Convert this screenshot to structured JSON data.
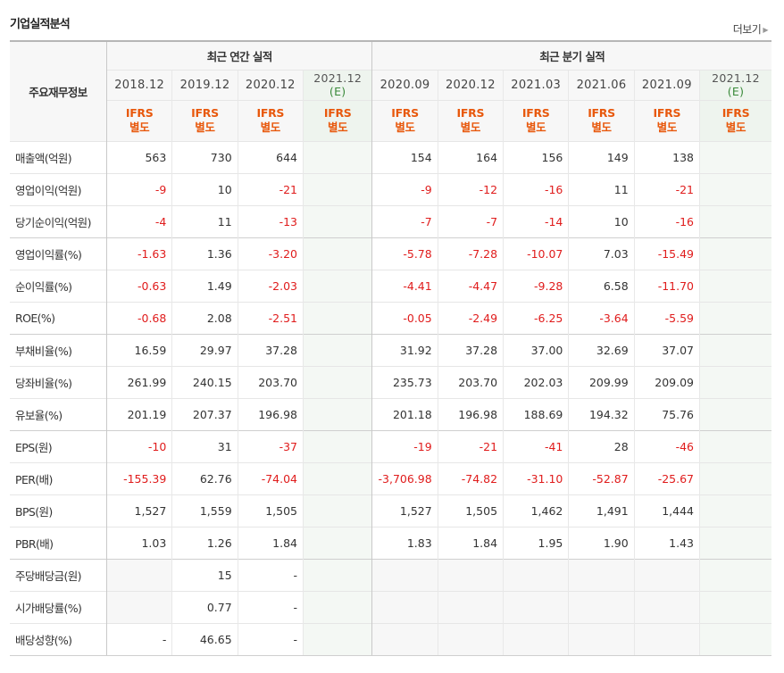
{
  "header": {
    "title": "기업실적분석",
    "more_label": "더보기"
  },
  "table": {
    "corner_label": "주요재무정보",
    "group_annual": "최근 연간 실적",
    "group_quarter": "최근 분기 실적",
    "periods": [
      "2018.12",
      "2019.12",
      "2020.12",
      "2021.12",
      "2020.09",
      "2020.12",
      "2021.03",
      "2021.06",
      "2021.09",
      "2021.12"
    ],
    "estimate_mark": "(E)",
    "ifrs_line1": "IFRS",
    "ifrs_line2": "별도",
    "rows": [
      {
        "label": "매출액(억원)",
        "cells": [
          "563",
          "730",
          "644",
          "",
          "154",
          "164",
          "156",
          "149",
          "138",
          ""
        ]
      },
      {
        "label": "영업이익(억원)",
        "cells": [
          "-9",
          "10",
          "-21",
          "",
          "-9",
          "-12",
          "-16",
          "11",
          "-21",
          ""
        ]
      },
      {
        "label": "당기순이익(억원)",
        "cells": [
          "-4",
          "11",
          "-13",
          "",
          "-7",
          "-7",
          "-14",
          "10",
          "-16",
          ""
        ]
      },
      {
        "label": "영업이익률(%)",
        "cells": [
          "-1.63",
          "1.36",
          "-3.20",
          "",
          "-5.78",
          "-7.28",
          "-10.07",
          "7.03",
          "-15.49",
          ""
        ]
      },
      {
        "label": "순이익률(%)",
        "cells": [
          "-0.63",
          "1.49",
          "-2.03",
          "",
          "-4.41",
          "-4.47",
          "-9.28",
          "6.58",
          "-11.70",
          ""
        ]
      },
      {
        "label": "ROE(%)",
        "cells": [
          "-0.68",
          "2.08",
          "-2.51",
          "",
          "-0.05",
          "-2.49",
          "-6.25",
          "-3.64",
          "-5.59",
          ""
        ]
      },
      {
        "label": "부채비율(%)",
        "cells": [
          "16.59",
          "29.97",
          "37.28",
          "",
          "31.92",
          "37.28",
          "37.00",
          "32.69",
          "37.07",
          ""
        ]
      },
      {
        "label": "당좌비율(%)",
        "cells": [
          "261.99",
          "240.15",
          "203.70",
          "",
          "235.73",
          "203.70",
          "202.03",
          "209.99",
          "209.09",
          ""
        ]
      },
      {
        "label": "유보율(%)",
        "cells": [
          "201.19",
          "207.37",
          "196.98",
          "",
          "201.18",
          "196.98",
          "188.69",
          "194.32",
          "75.76",
          ""
        ]
      },
      {
        "label": "EPS(원)",
        "cells": [
          "-10",
          "31",
          "-37",
          "",
          "-19",
          "-21",
          "-41",
          "28",
          "-46",
          ""
        ]
      },
      {
        "label": "PER(배)",
        "cells": [
          "-155.39",
          "62.76",
          "-74.04",
          "",
          "-3,706.98",
          "-74.82",
          "-31.10",
          "-52.87",
          "-25.67",
          ""
        ]
      },
      {
        "label": "BPS(원)",
        "cells": [
          "1,527",
          "1,559",
          "1,505",
          "",
          "1,527",
          "1,505",
          "1,462",
          "1,491",
          "1,444",
          ""
        ]
      },
      {
        "label": "PBR(배)",
        "cells": [
          "1.03",
          "1.26",
          "1.84",
          "",
          "1.83",
          "1.84",
          "1.95",
          "1.90",
          "1.43",
          ""
        ]
      },
      {
        "label": "주당배당금(원)",
        "cells": [
          "",
          "15",
          "-",
          "",
          "",
          "",
          "",
          "",
          "",
          ""
        ]
      },
      {
        "label": "시가배당률(%)",
        "cells": [
          "",
          "0.77",
          "-",
          "",
          "",
          "",
          "",
          "",
          "",
          ""
        ]
      },
      {
        "label": "배당성향(%)",
        "cells": [
          "-",
          "46.65",
          "-",
          "",
          "",
          "",
          "",
          "",
          "",
          ""
        ]
      }
    ]
  },
  "colors": {
    "negative": "#e01c1c",
    "ifrs": "#e8580c",
    "estimate": "#3a8a3a"
  }
}
